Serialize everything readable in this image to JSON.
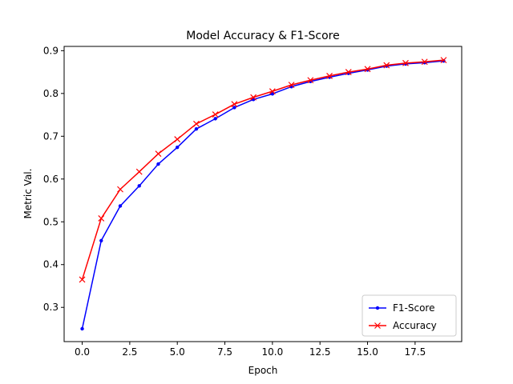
{
  "chart_data": {
    "type": "line",
    "title": "Model Accuracy & F1-Score",
    "xlabel": "Epoch",
    "ylabel": "Metric Val.",
    "xlim": [
      -0.95,
      19.95
    ],
    "ylim": [
      0.22,
      0.91
    ],
    "xticks": [
      0.0,
      2.5,
      5.0,
      7.5,
      10.0,
      12.5,
      15.0,
      17.5
    ],
    "xtick_labels": [
      "0.0",
      "2.5",
      "5.0",
      "7.5",
      "10.0",
      "12.5",
      "15.0",
      "17.5"
    ],
    "yticks": [
      0.3,
      0.4,
      0.5,
      0.6,
      0.7,
      0.8,
      0.9
    ],
    "ytick_labels": [
      "0.3",
      "0.4",
      "0.5",
      "0.6",
      "0.7",
      "0.8",
      "0.9"
    ],
    "grid": false,
    "legend_position": "lower-right",
    "x": [
      0,
      1,
      2,
      3,
      4,
      5,
      6,
      7,
      8,
      9,
      10,
      11,
      12,
      13,
      14,
      15,
      16,
      17,
      18,
      19
    ],
    "series": [
      {
        "name": "F1-Score",
        "color": "#0000ff",
        "marker": "dot",
        "values": [
          0.25,
          0.456,
          0.537,
          0.584,
          0.635,
          0.674,
          0.717,
          0.741,
          0.767,
          0.786,
          0.799,
          0.816,
          0.828,
          0.838,
          0.847,
          0.855,
          0.864,
          0.869,
          0.872,
          0.876
        ]
      },
      {
        "name": "Accuracy",
        "color": "#ff0000",
        "marker": "x",
        "values": [
          0.365,
          0.508,
          0.576,
          0.617,
          0.659,
          0.693,
          0.729,
          0.751,
          0.775,
          0.791,
          0.805,
          0.82,
          0.831,
          0.841,
          0.85,
          0.857,
          0.866,
          0.871,
          0.874,
          0.878
        ]
      }
    ]
  }
}
